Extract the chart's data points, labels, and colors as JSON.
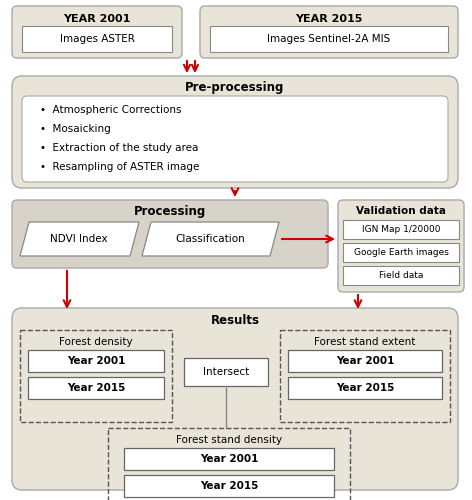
{
  "bg_color": "#ffffff",
  "box_fill_light": "#e8e4d8",
  "box_fill_white": "#ffffff",
  "box_fill_proc": "#d8d3c8",
  "arrow_color": "#cc0000",
  "line_color": "#888888",
  "dashed_color": "#555555",
  "text_dark": "#000000",
  "title_year2001": "YEAR 2001",
  "title_year2015": "YEAR 2015",
  "label_aster": "Images ASTER",
  "label_sentinel": "Images Sentinel-2A MIS",
  "label_preprocessing": "Pre-processing",
  "preprocessing_bullets": [
    "Atmospheric Corrections",
    "Mosaicking",
    "Extraction of the study area",
    "Resampling of ASTER image"
  ],
  "label_processing": "Processing",
  "label_ndvi": "NDVI Index",
  "label_class": "Classification",
  "label_validation": "Validation data",
  "validation_items": [
    "IGN Map 1/20000",
    "Google Earth images",
    "Field data"
  ],
  "label_results": "Results",
  "label_forest_density": "Forest density",
  "label_forest_extent": "Forest stand extent",
  "label_forest_stand_density": "Forest stand density",
  "label_intersect": "Intersect",
  "label_year2001": "Year 2001",
  "label_year2015": "Year 2015"
}
